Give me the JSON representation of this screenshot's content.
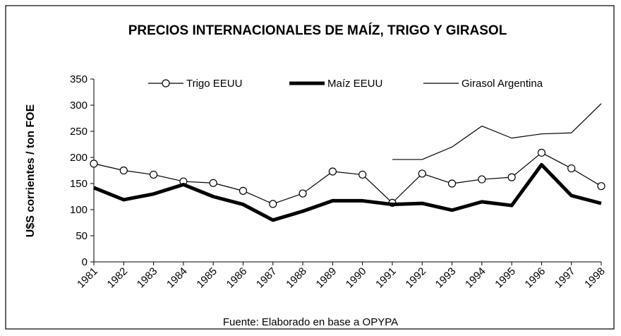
{
  "chart_data": {
    "type": "line",
    "title": "PRECIOS INTERNACIONALES DE MAÍZ, TRIGO Y GIRASOL",
    "y_label": "U$S corrientes / ton FOE",
    "source": "Fuente: Elaborado en base a OPYPA",
    "categories": [
      "1981",
      "1982",
      "1983",
      "1984",
      "1985",
      "1986",
      "1987",
      "1988",
      "1989",
      "1990",
      "1991",
      "1992",
      "1993",
      "1994",
      "1995",
      "1996",
      "1997",
      "1998"
    ],
    "series": [
      {
        "name": "Trigo EEUU",
        "color": "#000000",
        "width": 1.2,
        "marker": "circle",
        "values": [
          188,
          175,
          167,
          154,
          151,
          136,
          111,
          131,
          173,
          167,
          113,
          169,
          150,
          158,
          162,
          209,
          179,
          145
        ]
      },
      {
        "name": "Maíz EEUU",
        "color": "#000000",
        "width": 5,
        "marker": "none",
        "values": [
          142,
          119,
          130,
          148,
          125,
          110,
          80,
          97,
          117,
          117,
          110,
          112,
          99,
          115,
          108,
          186,
          127,
          112
        ]
      },
      {
        "name": "Girasol Argentina",
        "color": "#000000",
        "width": 1.2,
        "marker": "none",
        "values": [
          null,
          null,
          null,
          null,
          null,
          null,
          null,
          null,
          null,
          null,
          196,
          196,
          220,
          260,
          237,
          245,
          247,
          303
        ]
      }
    ],
    "ylim": [
      0,
      350
    ],
    "yticks": [
      0,
      50,
      100,
      150,
      200,
      250,
      300,
      350
    ],
    "grid": false
  }
}
